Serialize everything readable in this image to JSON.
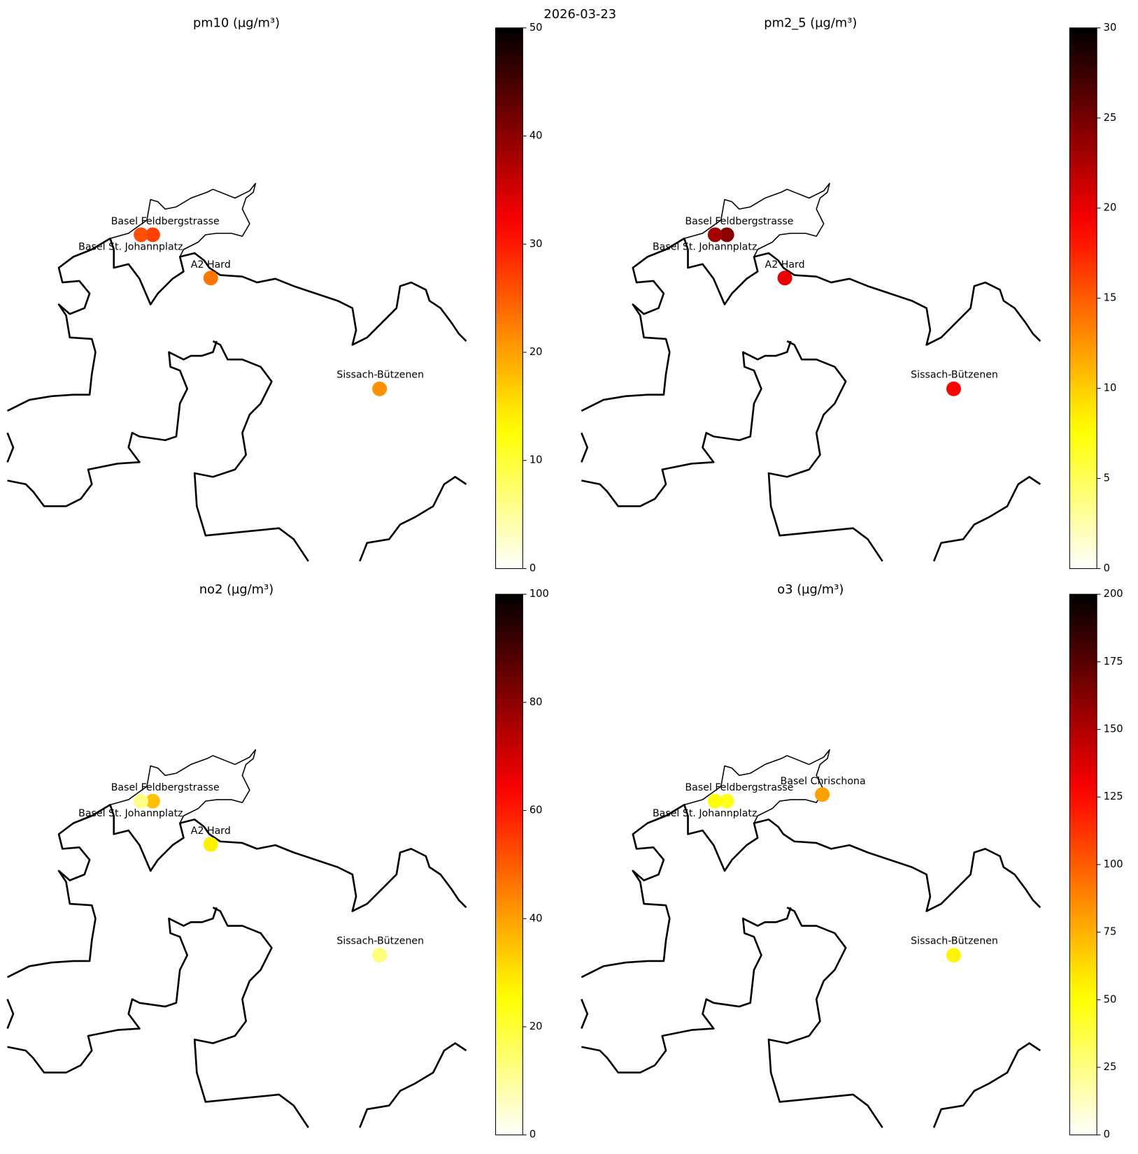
{
  "title": "2026-03-23",
  "chart_data": [
    {
      "type": "map",
      "title": "pm10 (µg/m³)",
      "colormap": "hot_r",
      "clim": [
        0,
        50
      ],
      "cticks": [
        0,
        10,
        20,
        30,
        40,
        50
      ],
      "stations": [
        "Basel Feldbergstrasse",
        "Basel St. Johannplatz",
        "A2 Hard",
        "Sissach-Bützenen"
      ],
      "values": [
        27,
        26,
        23,
        21
      ]
    },
    {
      "type": "map",
      "title": "pm2_5 (µg/m³)",
      "colormap": "hot_r",
      "clim": [
        0,
        30
      ],
      "cticks": [
        0,
        5,
        10,
        15,
        20,
        25,
        30
      ],
      "stations": [
        "Basel Feldbergstrasse",
        "Basel St. Johannplatz",
        "A2 Hard",
        "Sissach-Bützenen"
      ],
      "values": [
        24,
        23,
        20,
        19
      ]
    },
    {
      "type": "map",
      "title": "no2 (µg/m³)",
      "colormap": "hot_r",
      "clim": [
        0,
        100
      ],
      "cticks": [
        0,
        20,
        40,
        60,
        80,
        100
      ],
      "stations": [
        "Basel Feldbergstrasse",
        "Basel St. Johannplatz",
        "A2 Hard",
        "Sissach-Bützenen"
      ],
      "values": [
        35,
        12,
        28,
        13
      ]
    },
    {
      "type": "map",
      "title": "o3 (µg/m³)",
      "colormap": "hot_r",
      "clim": [
        0,
        200
      ],
      "cticks": [
        0,
        25,
        50,
        75,
        100,
        125,
        150,
        175,
        200
      ],
      "stations": [
        "Basel Feldbergstrasse",
        "Basel St. Johannplatz",
        "Basel Chrischona",
        "Sissach-Bützenen"
      ],
      "values": [
        45,
        50,
        80,
        55
      ]
    }
  ]
}
